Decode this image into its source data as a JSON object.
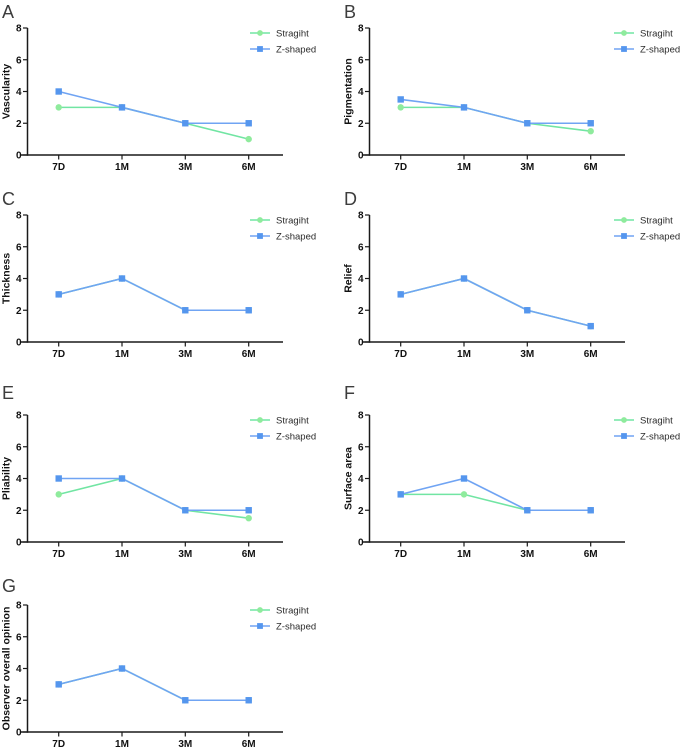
{
  "figure": {
    "background": "#ffffff",
    "colors": {
      "straight_line": "#71e5a3",
      "straight_fill": "#8feb9d",
      "zshaped_line": "#70a4f3",
      "zshaped_fill": "#5596ee",
      "axis": "#1a1a1a",
      "panel_letter": "#3d3d3d",
      "tick_text": "#111111",
      "legend_text": "#2b2b2b"
    }
  },
  "chart_data": [
    {
      "id": "A",
      "type": "line",
      "title": "",
      "xlabel": "",
      "ylabel": "Vascularity",
      "categories": [
        "7D",
        "1M",
        "3M",
        "6M"
      ],
      "ylim": [
        0,
        8
      ],
      "yticks": [
        0,
        2,
        4,
        6,
        8
      ],
      "grid": false,
      "legend_position": "top-right",
      "series": [
        {
          "name": "Stragiht",
          "marker": "circle",
          "color_key": "straight",
          "values": [
            3,
            3,
            2,
            1
          ]
        },
        {
          "name": "Z-shaped",
          "marker": "square",
          "color_key": "zshaped",
          "values": [
            4,
            3,
            2,
            2
          ]
        }
      ]
    },
    {
      "id": "B",
      "type": "line",
      "title": "",
      "xlabel": "",
      "ylabel": "Pigmentation",
      "categories": [
        "7D",
        "1M",
        "3M",
        "6M"
      ],
      "ylim": [
        0,
        8
      ],
      "yticks": [
        0,
        2,
        4,
        6,
        8
      ],
      "grid": false,
      "legend_position": "top-right",
      "series": [
        {
          "name": "Stragiht",
          "marker": "circle",
          "color_key": "straight",
          "values": [
            3,
            3,
            2,
            1.5
          ]
        },
        {
          "name": "Z-shaped",
          "marker": "square",
          "color_key": "zshaped",
          "values": [
            3.5,
            3,
            2,
            2
          ]
        }
      ]
    },
    {
      "id": "C",
      "type": "line",
      "title": "",
      "xlabel": "",
      "ylabel": "Thickness",
      "categories": [
        "7D",
        "1M",
        "3M",
        "6M"
      ],
      "ylim": [
        0,
        8
      ],
      "yticks": [
        0,
        2,
        4,
        6,
        8
      ],
      "grid": false,
      "legend_position": "top-right",
      "series": [
        {
          "name": "Stragiht",
          "marker": "circle",
          "color_key": "straight",
          "values": [
            3,
            4,
            2,
            2
          ]
        },
        {
          "name": "Z-shaped",
          "marker": "square",
          "color_key": "zshaped",
          "values": [
            3,
            4,
            2,
            2
          ]
        }
      ]
    },
    {
      "id": "D",
      "type": "line",
      "title": "",
      "xlabel": "",
      "ylabel": "Relief",
      "categories": [
        "7D",
        "1M",
        "3M",
        "6M"
      ],
      "ylim": [
        0,
        8
      ],
      "yticks": [
        0,
        2,
        4,
        6,
        8
      ],
      "grid": false,
      "legend_position": "top-right",
      "series": [
        {
          "name": "Stragiht",
          "marker": "circle",
          "color_key": "straight",
          "values": [
            3,
            4,
            2,
            1
          ]
        },
        {
          "name": "Z-shaped",
          "marker": "square",
          "color_key": "zshaped",
          "values": [
            3,
            4,
            2,
            1
          ]
        }
      ]
    },
    {
      "id": "E",
      "type": "line",
      "title": "",
      "xlabel": "",
      "ylabel": "Pliability",
      "categories": [
        "7D",
        "1M",
        "3M",
        "6M"
      ],
      "ylim": [
        0,
        8
      ],
      "yticks": [
        0,
        2,
        4,
        6,
        8
      ],
      "grid": false,
      "legend_position": "top-right",
      "series": [
        {
          "name": "Stragiht",
          "marker": "circle",
          "color_key": "straight",
          "values": [
            3,
            4,
            2,
            1.5
          ]
        },
        {
          "name": "Z-shaped",
          "marker": "square",
          "color_key": "zshaped",
          "values": [
            4,
            4,
            2,
            2
          ]
        }
      ]
    },
    {
      "id": "F",
      "type": "line",
      "title": "",
      "xlabel": "",
      "ylabel": "Surface area",
      "categories": [
        "7D",
        "1M",
        "3M",
        "6M"
      ],
      "ylim": [
        0,
        8
      ],
      "yticks": [
        0,
        2,
        4,
        6,
        8
      ],
      "grid": false,
      "legend_position": "top-right",
      "series": [
        {
          "name": "Stragiht",
          "marker": "circle",
          "color_key": "straight",
          "values": [
            3,
            3,
            2,
            2
          ]
        },
        {
          "name": "Z-shaped",
          "marker": "square",
          "color_key": "zshaped",
          "values": [
            3,
            4,
            2,
            2
          ]
        }
      ]
    },
    {
      "id": "G",
      "type": "line",
      "title": "",
      "xlabel": "",
      "ylabel": "Observer overall opinion",
      "categories": [
        "7D",
        "1M",
        "3M",
        "6M"
      ],
      "ylim": [
        0,
        8
      ],
      "yticks": [
        0,
        2,
        4,
        6,
        8
      ],
      "grid": false,
      "legend_position": "top-right",
      "series": [
        {
          "name": "Stragiht",
          "marker": "circle",
          "color_key": "straight",
          "values": [
            3,
            4,
            2,
            2
          ]
        },
        {
          "name": "Z-shaped",
          "marker": "square",
          "color_key": "zshaped",
          "values": [
            3,
            4,
            2,
            2
          ]
        }
      ]
    }
  ]
}
